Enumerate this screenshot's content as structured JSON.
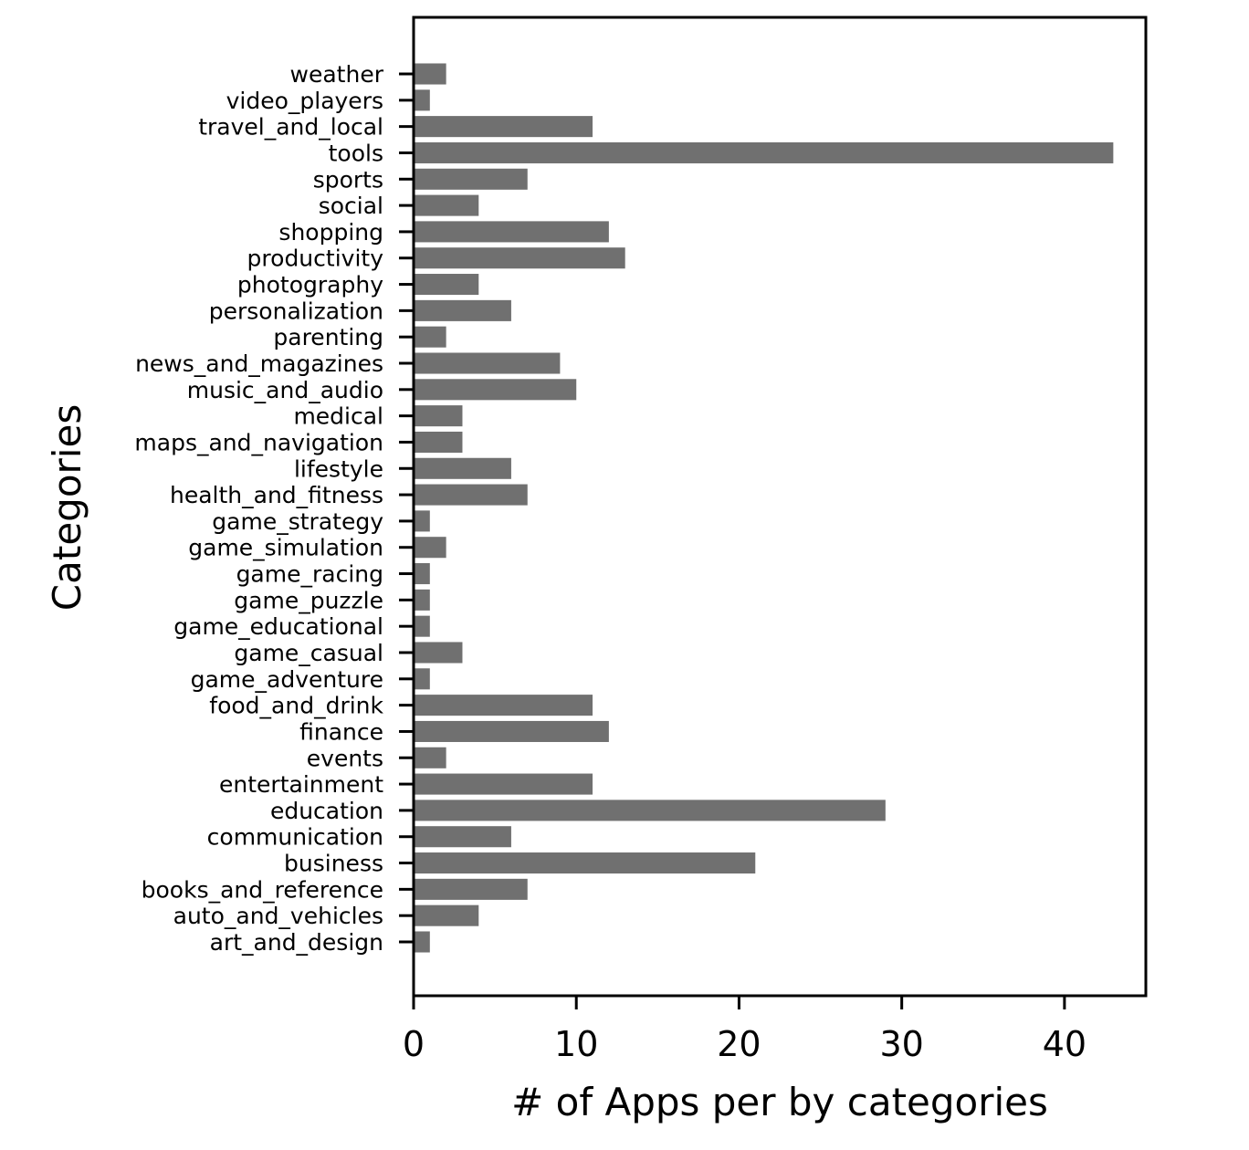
{
  "chart_data": {
    "type": "bar",
    "orientation": "horizontal",
    "categories": [
      "art_and_design",
      "auto_and_vehicles",
      "books_and_reference",
      "business",
      "communication",
      "education",
      "entertainment",
      "events",
      "finance",
      "food_and_drink",
      "game_adventure",
      "game_casual",
      "game_educational",
      "game_puzzle",
      "game_racing",
      "game_simulation",
      "game_strategy",
      "health_and_fitness",
      "lifestyle",
      "maps_and_navigation",
      "medical",
      "music_and_audio",
      "news_and_magazines",
      "parenting",
      "personalization",
      "photography",
      "productivity",
      "shopping",
      "social",
      "sports",
      "tools",
      "travel_and_local",
      "video_players",
      "weather"
    ],
    "values": [
      1,
      4,
      7,
      21,
      6,
      29,
      11,
      2,
      12,
      11,
      1,
      3,
      1,
      1,
      1,
      2,
      1,
      7,
      6,
      3,
      3,
      10,
      9,
      2,
      6,
      4,
      13,
      12,
      4,
      7,
      43,
      11,
      1,
      2
    ],
    "xlabel": "# of Apps per by categories",
    "ylabel": "Categories",
    "xlim": [
      0,
      45
    ],
    "xticks": [
      0,
      10,
      20,
      30,
      40
    ],
    "grid": false,
    "bar_color": "#707070"
  }
}
